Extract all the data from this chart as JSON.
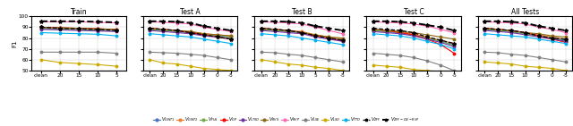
{
  "panels": [
    "Train",
    "Test A",
    "Test B",
    "Test C",
    "All Tests"
  ],
  "x_ticks_train": [
    "clean",
    "20",
    "15",
    "10",
    "5"
  ],
  "x_ticks_test": [
    "clean",
    "20",
    "15",
    "10",
    "5",
    "0",
    "-5"
  ],
  "x_vals_train": [
    0,
    1,
    2,
    3,
    4
  ],
  "x_vals_test": [
    0,
    1,
    2,
    3,
    4,
    5,
    6
  ],
  "series": {
    "V_GWT1": {
      "color": "#4472C4",
      "marker": "o",
      "ms": 1.8,
      "lw": 0.8,
      "ls": "-",
      "data": [
        [
          89,
          88.5,
          88,
          87.5,
          87
        ],
        [
          88,
          87,
          86,
          85,
          83,
          82,
          81
        ],
        [
          88,
          87,
          86,
          85,
          82,
          80,
          78
        ],
        [
          87,
          86,
          85,
          83,
          80,
          77,
          74
        ],
        [
          88,
          87,
          86,
          84,
          82,
          80,
          78
        ]
      ]
    },
    "V_GWT2": {
      "color": "#ED7D31",
      "marker": "o",
      "ms": 1.8,
      "lw": 0.8,
      "ls": "-",
      "data": [
        [
          90,
          89.5,
          89,
          88.5,
          88
        ],
        [
          89,
          88,
          87,
          86,
          84,
          83,
          82
        ],
        [
          89,
          88,
          87,
          86,
          83,
          81,
          79
        ],
        [
          88,
          87,
          86,
          84,
          81,
          78,
          75
        ],
        [
          89,
          88,
          87,
          85,
          83,
          81,
          79
        ]
      ]
    },
    "V_FUS": {
      "color": "#70AD47",
      "marker": "o",
      "ms": 1.8,
      "lw": 0.8,
      "ls": "-",
      "data": [
        [
          89,
          88.5,
          88,
          87.5,
          87
        ],
        [
          88,
          87,
          86,
          85,
          83,
          82,
          80
        ],
        [
          88,
          87,
          86,
          85,
          82,
          80,
          78
        ],
        [
          87,
          86,
          85,
          83,
          80,
          77,
          73
        ],
        [
          88,
          87,
          86,
          84,
          82,
          80,
          77
        ]
      ]
    },
    "V_GP": {
      "color": "#FF0000",
      "marker": "o",
      "ms": 1.8,
      "lw": 0.8,
      "ls": "-",
      "data": [
        [
          90,
          89.5,
          89,
          88.5,
          88
        ],
        [
          89,
          88,
          87,
          85,
          83,
          81,
          79
        ],
        [
          89,
          88,
          87,
          85,
          82,
          80,
          77
        ],
        [
          88,
          87,
          85,
          83,
          79,
          74,
          66
        ],
        [
          89,
          88,
          87,
          85,
          82,
          79,
          76
        ]
      ]
    },
    "V_LTSO": {
      "color": "#7030A0",
      "marker": "o",
      "ms": 1.8,
      "lw": 0.8,
      "ls": "-",
      "data": [
        [
          88,
          87.5,
          87,
          86.5,
          86
        ],
        [
          87,
          86,
          85,
          84,
          82,
          81,
          79
        ],
        [
          87,
          86,
          85,
          84,
          81,
          79,
          77
        ],
        [
          86,
          85,
          84,
          82,
          79,
          76,
          72
        ],
        [
          87,
          86,
          85,
          83,
          81,
          79,
          77
        ]
      ]
    },
    "V_RVS": {
      "color": "#8B6914",
      "marker": "o",
      "ms": 1.8,
      "lw": 0.8,
      "ls": "-",
      "data": [
        [
          90,
          89.5,
          89,
          88.5,
          88
        ],
        [
          89,
          88,
          87,
          86,
          84,
          83,
          82
        ],
        [
          89,
          88,
          87,
          85,
          83,
          81,
          80
        ],
        [
          88,
          87,
          86,
          85,
          83,
          81,
          79
        ],
        [
          89,
          88,
          87,
          85,
          84,
          82,
          81
        ]
      ]
    },
    "V_RVP": {
      "color": "#FF69B4",
      "marker": "o",
      "ms": 1.8,
      "lw": 0.8,
      "ls": "-",
      "data": [
        [
          95,
          95,
          95,
          94.5,
          94
        ],
        [
          95,
          94.5,
          94,
          93,
          90,
          88,
          86
        ],
        [
          95,
          94.5,
          94,
          93,
          90,
          87,
          84
        ],
        [
          95,
          94.5,
          94,
          93,
          91,
          88,
          85
        ],
        [
          95,
          94.5,
          94,
          93,
          90,
          88,
          85
        ]
      ]
    },
    "V_LSE": {
      "color": "#808080",
      "marker": "o",
      "ms": 1.8,
      "lw": 0.8,
      "ls": "-",
      "data": [
        [
          67,
          67,
          67,
          67,
          66
        ],
        [
          67,
          66.5,
          66,
          65,
          64,
          62,
          60
        ],
        [
          67,
          66.5,
          65,
          64,
          62,
          60,
          58
        ],
        [
          66,
          65,
          64,
          62,
          59,
          55,
          50
        ],
        [
          67,
          66.5,
          65,
          64,
          62,
          60,
          58
        ]
      ]
    },
    "V_LSO": {
      "color": "#CCAA00",
      "marker": "o",
      "ms": 1.8,
      "lw": 0.8,
      "ls": "-",
      "data": [
        [
          60,
          57.5,
          56.5,
          55.5,
          54
        ],
        [
          60,
          57,
          56,
          54,
          52,
          51,
          50
        ],
        [
          60,
          58,
          56,
          55,
          53,
          52,
          50
        ],
        [
          55,
          54,
          53,
          51,
          50,
          49,
          48
        ],
        [
          58,
          57,
          56,
          54,
          53,
          52,
          50
        ]
      ]
    },
    "V_TTO": {
      "color": "#00B0F0",
      "marker": "o",
      "ms": 1.8,
      "lw": 0.8,
      "ls": "-",
      "data": [
        [
          85,
          84.5,
          84,
          83.5,
          82
        ],
        [
          84,
          83,
          82,
          81,
          79,
          77,
          75
        ],
        [
          84,
          83,
          82,
          80,
          78,
          76,
          74
        ],
        [
          84,
          83,
          82,
          80,
          77,
          74,
          70
        ],
        [
          84,
          83,
          82,
          81,
          79,
          77,
          75
        ]
      ]
    },
    "V_ZFF": {
      "color": "#000000",
      "marker": "*",
      "ms": 3.0,
      "lw": 0.9,
      "ls": "--",
      "data": [
        [
          90,
          89,
          88.5,
          88,
          87
        ],
        [
          89,
          88,
          87,
          85,
          83,
          81,
          79
        ],
        [
          89,
          88,
          87,
          85,
          82,
          80,
          78
        ],
        [
          89,
          88,
          87,
          85,
          81,
          78,
          75
        ],
        [
          89,
          88,
          87,
          85,
          82,
          80,
          79
        ]
      ]
    },
    "V_ZFF_ON_RVP": {
      "color": "#000000",
      "marker": "*",
      "ms": 3.0,
      "lw": 1.4,
      "ls": "--",
      "data": [
        [
          95.5,
          95.5,
          95.5,
          95,
          94.5
        ],
        [
          95.5,
          95.5,
          95,
          94,
          91,
          89,
          87
        ],
        [
          95.5,
          95.5,
          95,
          94,
          91,
          89,
          87
        ],
        [
          95.5,
          95.5,
          95,
          94,
          92,
          90,
          87
        ],
        [
          95.5,
          95.5,
          95,
          94,
          91,
          89,
          87
        ]
      ]
    }
  },
  "ylabel": "F1",
  "ylim": [
    50,
    100
  ],
  "yticks": [
    50,
    60,
    70,
    80,
    90,
    100
  ],
  "legend_labels": [
    "$V_{GWT1}$",
    "$V_{GWT2}$",
    "$V_{FUS}$",
    "$V_{GP}$",
    "$V_{LTSO}$",
    "$V_{RVS}$",
    "$V_{RVP}$",
    "$V_{LSE}$",
    "$V_{LSO}$",
    "$V_{TTO}$",
    "$V_{ZFF}$",
    "$V_{ZFF-ON-RVP}$"
  ],
  "legend_colors": [
    "#4472C4",
    "#ED7D31",
    "#70AD47",
    "#FF0000",
    "#7030A0",
    "#8B6914",
    "#FF69B4",
    "#808080",
    "#CCAA00",
    "#00B0F0",
    "#000000",
    "#000000"
  ],
  "legend_markers": [
    "o",
    "o",
    "o",
    "o",
    "o",
    "o",
    "o",
    "o",
    "o",
    "o",
    "*",
    "*"
  ],
  "legend_ls": [
    "-",
    "-",
    "-",
    "-",
    "-",
    "-",
    "-",
    "-",
    "-",
    "-",
    "--",
    "--"
  ],
  "legend_lw": [
    0.8,
    0.8,
    0.8,
    0.8,
    0.8,
    0.8,
    0.8,
    0.8,
    0.8,
    0.8,
    0.9,
    1.4
  ]
}
